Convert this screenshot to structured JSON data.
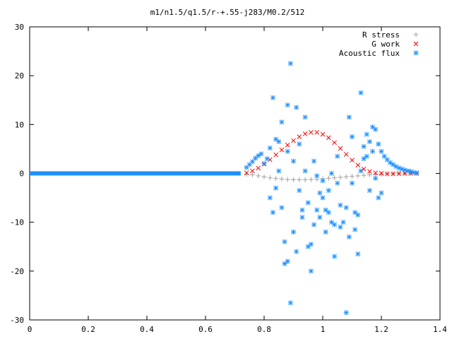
{
  "chart_data": {
    "type": "scatter",
    "title": "m1/n1.5/q1.5/r-+.55-j283/M0.2/512",
    "xlabel": "",
    "ylabel": "",
    "xlim": [
      0,
      1.4
    ],
    "ylim": [
      -30,
      30
    ],
    "x_ticks": [
      "0",
      "0.2",
      "0.4",
      "0.6",
      "0.8",
      "1",
      "1.2",
      "1.4"
    ],
    "y_ticks": [
      "30",
      "20",
      "10",
      "0",
      "-10",
      "-20",
      "-30"
    ],
    "grid": false,
    "legend_position": "top-right",
    "series": [
      {
        "name": "R stress",
        "marker": "+",
        "color": "#a0a0a0",
        "points": [
          [
            0.74,
            -0.15
          ],
          [
            0.76,
            -0.3
          ],
          [
            0.78,
            -0.5
          ],
          [
            0.8,
            -0.7
          ],
          [
            0.82,
            -0.9
          ],
          [
            0.84,
            -1.05
          ],
          [
            0.86,
            -1.15
          ],
          [
            0.88,
            -1.25
          ],
          [
            0.9,
            -1.3
          ],
          [
            0.92,
            -1.3
          ],
          [
            0.94,
            -1.3
          ],
          [
            0.96,
            -1.25
          ],
          [
            0.98,
            -1.2
          ],
          [
            1.0,
            -1.1
          ],
          [
            1.02,
            -1.0
          ],
          [
            1.04,
            -0.9
          ],
          [
            1.06,
            -0.8
          ],
          [
            1.08,
            -0.7
          ],
          [
            1.1,
            -0.6
          ],
          [
            1.12,
            -0.5
          ],
          [
            1.14,
            -0.4
          ],
          [
            1.16,
            -0.3
          ],
          [
            1.18,
            -0.22
          ],
          [
            1.2,
            -0.15
          ],
          [
            1.22,
            -0.1
          ],
          [
            1.24,
            -0.06
          ],
          [
            1.26,
            -0.03
          ],
          [
            1.28,
            -0.01
          ],
          [
            1.3,
            0.0
          ],
          [
            1.32,
            0.0
          ]
        ]
      },
      {
        "name": "G work",
        "marker": "x",
        "color": "#ff0000",
        "points": [
          [
            0.74,
            0.1
          ],
          [
            0.76,
            0.5
          ],
          [
            0.78,
            1.1
          ],
          [
            0.8,
            1.9
          ],
          [
            0.82,
            2.8
          ],
          [
            0.84,
            3.8
          ],
          [
            0.86,
            4.8
          ],
          [
            0.88,
            5.8
          ],
          [
            0.9,
            6.7
          ],
          [
            0.92,
            7.5
          ],
          [
            0.94,
            8.1
          ],
          [
            0.96,
            8.4
          ],
          [
            0.98,
            8.4
          ],
          [
            1.0,
            8.0
          ],
          [
            1.02,
            7.3
          ],
          [
            1.04,
            6.3
          ],
          [
            1.06,
            5.1
          ],
          [
            1.08,
            3.9
          ],
          [
            1.1,
            2.7
          ],
          [
            1.12,
            1.7
          ],
          [
            1.14,
            0.9
          ],
          [
            1.16,
            0.4
          ],
          [
            1.18,
            0.1
          ],
          [
            1.2,
            0.0
          ],
          [
            1.22,
            -0.1
          ],
          [
            1.24,
            -0.1
          ],
          [
            1.26,
            -0.05
          ],
          [
            1.28,
            0.0
          ],
          [
            1.3,
            0.0
          ],
          [
            1.32,
            0.0
          ]
        ]
      },
      {
        "name": "Acoustic flux",
        "marker": "*",
        "color": "#1e90ff",
        "baseline": {
          "x_from": 0.0,
          "x_to": 0.72,
          "y": 0.0
        },
        "points": [
          [
            0.74,
            1.2
          ],
          [
            0.75,
            1.8
          ],
          [
            0.76,
            2.4
          ],
          [
            0.77,
            3.1
          ],
          [
            0.78,
            3.6
          ],
          [
            0.79,
            4.0
          ],
          [
            0.8,
            2.0
          ],
          [
            0.81,
            3.0
          ],
          [
            0.82,
            -5.0
          ],
          [
            0.82,
            5.2
          ],
          [
            0.83,
            -8.0
          ],
          [
            0.83,
            15.5
          ],
          [
            0.84,
            7.0
          ],
          [
            0.84,
            -3.0
          ],
          [
            0.85,
            6.5
          ],
          [
            0.85,
            0.5
          ],
          [
            0.86,
            -7.0
          ],
          [
            0.86,
            10.5
          ],
          [
            0.87,
            -14.0
          ],
          [
            0.87,
            -18.5
          ],
          [
            0.88,
            -18.0
          ],
          [
            0.88,
            4.5
          ],
          [
            0.88,
            14.0
          ],
          [
            0.89,
            22.5
          ],
          [
            0.89,
            -26.5
          ],
          [
            0.9,
            -12.0
          ],
          [
            0.9,
            2.5
          ],
          [
            0.91,
            13.5
          ],
          [
            0.91,
            -16.0
          ],
          [
            0.92,
            6.0
          ],
          [
            0.92,
            -3.5
          ],
          [
            0.93,
            -9.0
          ],
          [
            0.93,
            -7.5
          ],
          [
            0.94,
            0.5
          ],
          [
            0.94,
            11.5
          ],
          [
            0.95,
            -15.0
          ],
          [
            0.95,
            -6.0
          ],
          [
            0.96,
            -14.5
          ],
          [
            0.96,
            -20.0
          ],
          [
            0.97,
            -10.5
          ],
          [
            0.97,
            2.5
          ],
          [
            0.98,
            -7.5
          ],
          [
            0.98,
            -0.5
          ],
          [
            0.99,
            -9.0
          ],
          [
            0.99,
            -4.0
          ],
          [
            1.0,
            -5.0
          ],
          [
            1.0,
            -1.5
          ],
          [
            1.01,
            -12.0
          ],
          [
            1.01,
            -7.5
          ],
          [
            1.02,
            -3.5
          ],
          [
            1.02,
            -8.0
          ],
          [
            1.03,
            0.0
          ],
          [
            1.03,
            -10.0
          ],
          [
            1.04,
            -17.0
          ],
          [
            1.04,
            -10.5
          ],
          [
            1.05,
            -2.0
          ],
          [
            1.05,
            3.5
          ],
          [
            1.06,
            -6.5
          ],
          [
            1.06,
            -11.0
          ],
          [
            1.07,
            -10.0
          ],
          [
            1.08,
            -7.0
          ],
          [
            1.08,
            -28.5
          ],
          [
            1.09,
            -13.0
          ],
          [
            1.09,
            11.5
          ],
          [
            1.1,
            -2.0
          ],
          [
            1.1,
            7.5
          ],
          [
            1.11,
            -11.5
          ],
          [
            1.11,
            -8.0
          ],
          [
            1.12,
            -8.5
          ],
          [
            1.12,
            -16.5
          ],
          [
            1.13,
            16.5
          ],
          [
            1.13,
            0.5
          ],
          [
            1.14,
            5.5
          ],
          [
            1.14,
            3.0
          ],
          [
            1.15,
            8.0
          ],
          [
            1.15,
            3.5
          ],
          [
            1.16,
            6.5
          ],
          [
            1.16,
            -3.5
          ],
          [
            1.17,
            9.5
          ],
          [
            1.17,
            4.5
          ],
          [
            1.18,
            -1.0
          ],
          [
            1.18,
            9.0
          ],
          [
            1.19,
            6.0
          ],
          [
            1.19,
            -5.0
          ],
          [
            1.2,
            4.5
          ],
          [
            1.2,
            -4.0
          ],
          [
            1.21,
            3.5
          ],
          [
            1.22,
            2.8
          ],
          [
            1.23,
            2.2
          ],
          [
            1.24,
            1.8
          ],
          [
            1.25,
            1.4
          ],
          [
            1.26,
            1.1
          ],
          [
            1.27,
            0.9
          ],
          [
            1.28,
            0.7
          ],
          [
            1.29,
            0.5
          ],
          [
            1.3,
            0.4
          ],
          [
            1.31,
            0.2
          ],
          [
            1.32,
            0.1
          ]
        ]
      }
    ]
  }
}
